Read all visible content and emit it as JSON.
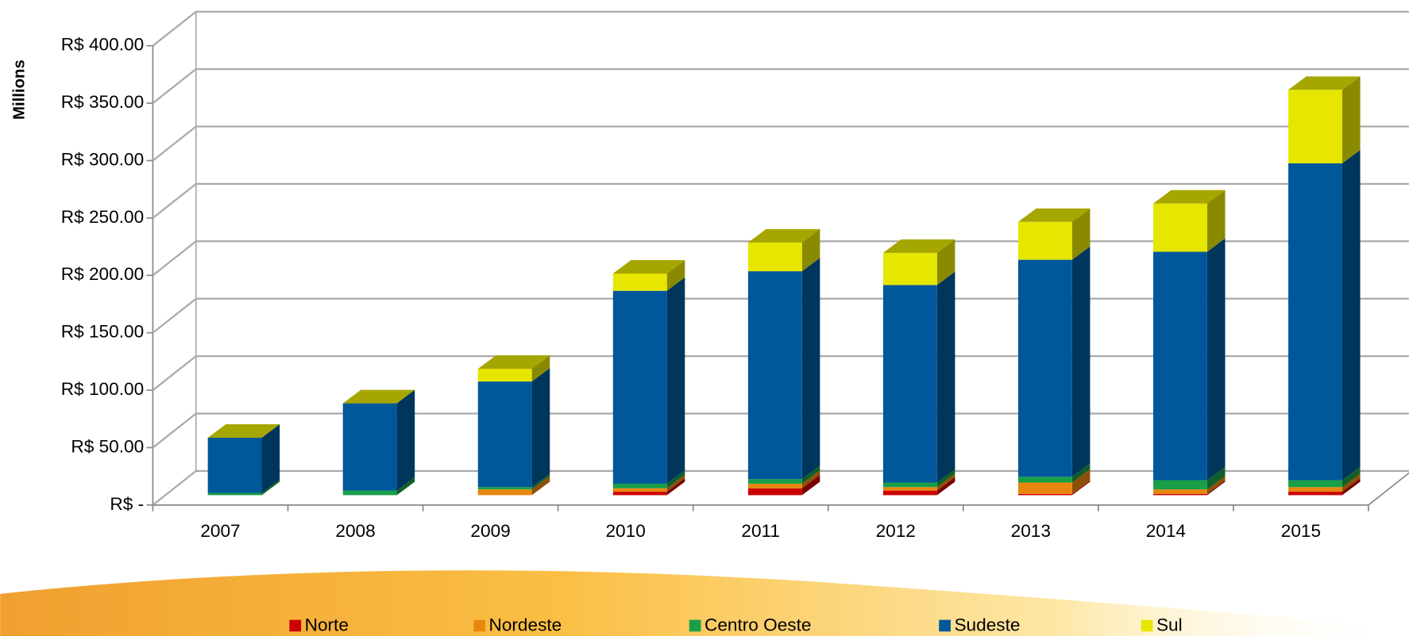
{
  "chart_data": {
    "type": "bar3d_stacked",
    "y_axis_label": "Millions",
    "categories": [
      "2007",
      "2008",
      "2009",
      "2010",
      "2011",
      "2012",
      "2013",
      "2014",
      "2015"
    ],
    "series": [
      {
        "name": "Norte",
        "color": "#cc0000",
        "values": [
          0,
          0,
          0,
          3,
          6,
          4,
          1,
          1,
          3
        ]
      },
      {
        "name": "Nordeste",
        "color": "#e8870e",
        "values": [
          0,
          0,
          5,
          3,
          4,
          3,
          10,
          4,
          4
        ]
      },
      {
        "name": "Centro Oeste",
        "color": "#1a9e48",
        "values": [
          2,
          4,
          2,
          4,
          4,
          4,
          5,
          8,
          6
        ]
      },
      {
        "name": "Sudeste",
        "color": "#00589a",
        "values": [
          48,
          76,
          92,
          168,
          181,
          172,
          189,
          199,
          276
        ]
      },
      {
        "name": "Sul",
        "color": "#e6e600",
        "values": [
          0,
          0,
          11,
          15,
          25,
          28,
          33,
          42,
          64
        ]
      }
    ],
    "ylim": [
      0,
      400
    ],
    "yticks": [
      {
        "value": 0,
        "label": "R$ -"
      },
      {
        "value": 50,
        "label": "R$ 50.00"
      },
      {
        "value": 100,
        "label": "R$ 100.00"
      },
      {
        "value": 150,
        "label": "R$ 150.00"
      },
      {
        "value": 200,
        "label": "R$ 200.00"
      },
      {
        "value": 250,
        "label": "R$ 250.00"
      },
      {
        "value": 300,
        "label": "R$ 300.00"
      },
      {
        "value": 350,
        "label": "R$ 350.00"
      },
      {
        "value": 400,
        "label": "R$ 400.00"
      }
    ],
    "grid": true
  }
}
